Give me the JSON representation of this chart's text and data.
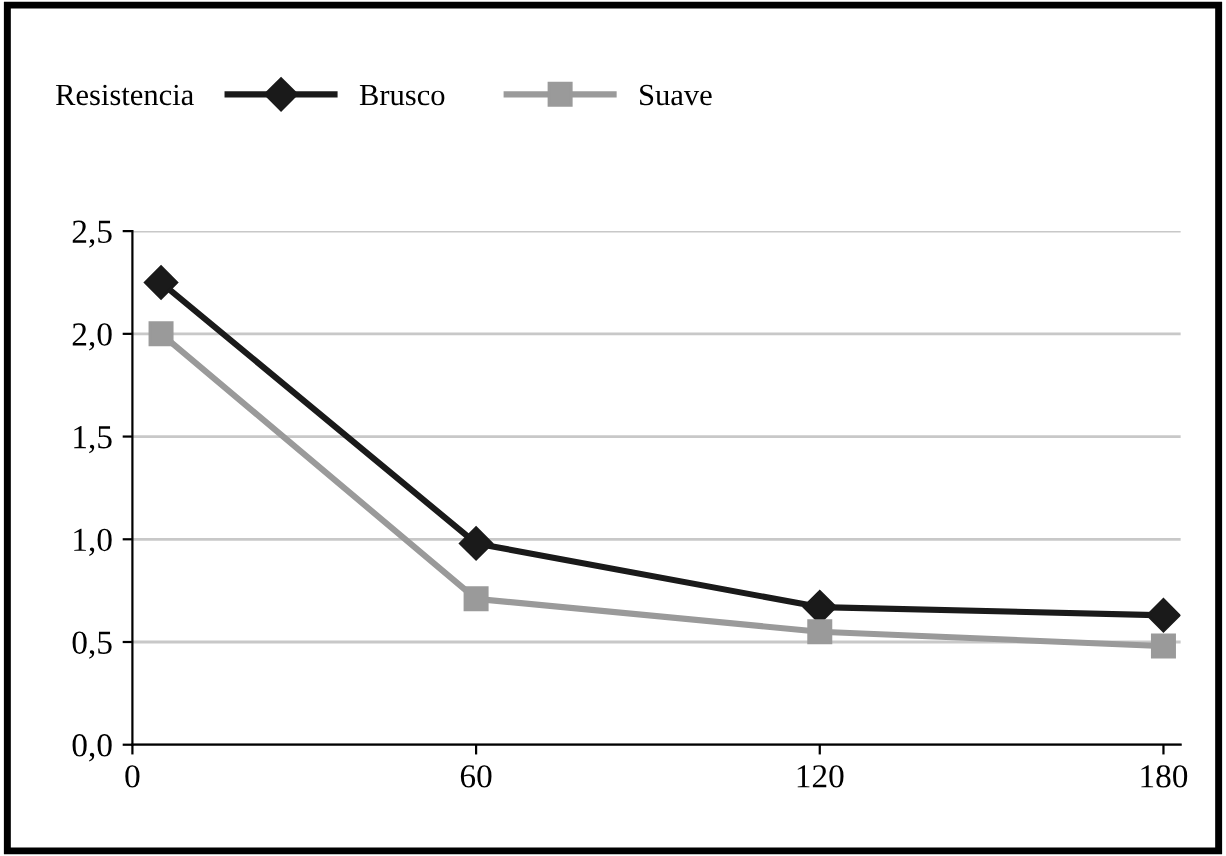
{
  "chart_data": {
    "type": "line",
    "legend_title": "Resistencia",
    "series": [
      {
        "name": "Brusco",
        "color": "#1a1a1a",
        "marker": "diamond",
        "x": [
          5,
          60,
          120,
          180
        ],
        "values": [
          2.25,
          0.98,
          0.67,
          0.63
        ]
      },
      {
        "name": "Suave",
        "color": "#9a9a9a",
        "marker": "square",
        "x": [
          5,
          60,
          120,
          180
        ],
        "values": [
          2.0,
          0.71,
          0.55,
          0.48
        ]
      }
    ],
    "xlim": [
      0,
      183
    ],
    "xticks": [
      0,
      60,
      120,
      180
    ],
    "ylim": [
      0,
      2.5
    ],
    "yticks": [
      {
        "value": 0,
        "label": "0,0"
      },
      {
        "value": 0.5,
        "label": "0,5"
      },
      {
        "value": 1.0,
        "label": "1,0"
      },
      {
        "value": 1.5,
        "label": "1,5"
      },
      {
        "value": 2.0,
        "label": "2,0"
      },
      {
        "value": 2.5,
        "label": "2,5"
      }
    ],
    "grid": "y",
    "legend": "top",
    "line_style": "solid"
  }
}
